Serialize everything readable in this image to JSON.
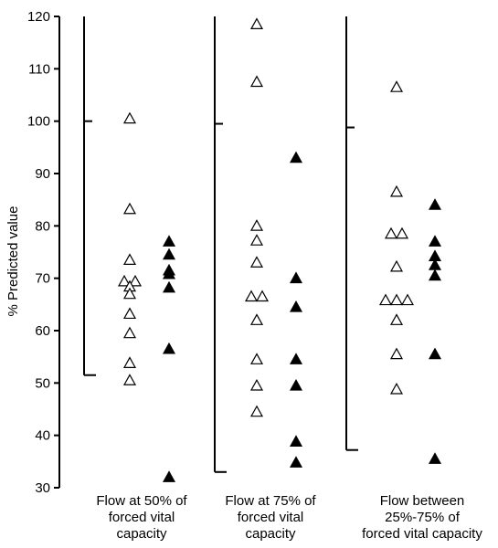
{
  "chart_data": {
    "type": "scatter",
    "ylabel": "% Predicted value",
    "ylim": [
      30,
      120
    ],
    "yticks": [
      30,
      40,
      50,
      60,
      70,
      80,
      90,
      100,
      110,
      120
    ],
    "groups": [
      {
        "label_lines": [
          "Flow at 50% of",
          "forced vital",
          "capacity"
        ],
        "range": [
          51.5,
          120
        ],
        "reference": 100,
        "open": [
          100.5,
          83.2,
          73.5,
          69.4,
          69.4,
          68.4,
          67.0,
          63.2,
          59.5,
          53.8,
          50.5
        ],
        "filled": [
          77.0,
          74.5,
          71.5,
          70.8,
          68.2,
          56.5,
          32.0
        ]
      },
      {
        "label_lines": [
          "Flow at 75% of",
          "forced vital",
          "capacity"
        ],
        "range": [
          33.0,
          120
        ],
        "reference": 99.5,
        "open": [
          118.5,
          107.5,
          80.0,
          77.2,
          73.0,
          66.5,
          66.5,
          62.0,
          54.5,
          49.5,
          44.5
        ],
        "filled": [
          93.0,
          70.0,
          64.5,
          54.5,
          49.5,
          38.8,
          34.8
        ]
      },
      {
        "label_lines": [
          "Flow between",
          "25%-75% of",
          "forced vital capacity"
        ],
        "range": [
          37.2,
          120
        ],
        "reference": 98.8,
        "open": [
          106.5,
          86.5,
          78.5,
          78.5,
          72.2,
          65.8,
          65.8,
          65.8,
          62.0,
          55.5,
          48.8
        ],
        "filled": [
          84.0,
          77.0,
          74.2,
          72.5,
          70.5,
          55.5,
          35.5
        ]
      }
    ]
  }
}
